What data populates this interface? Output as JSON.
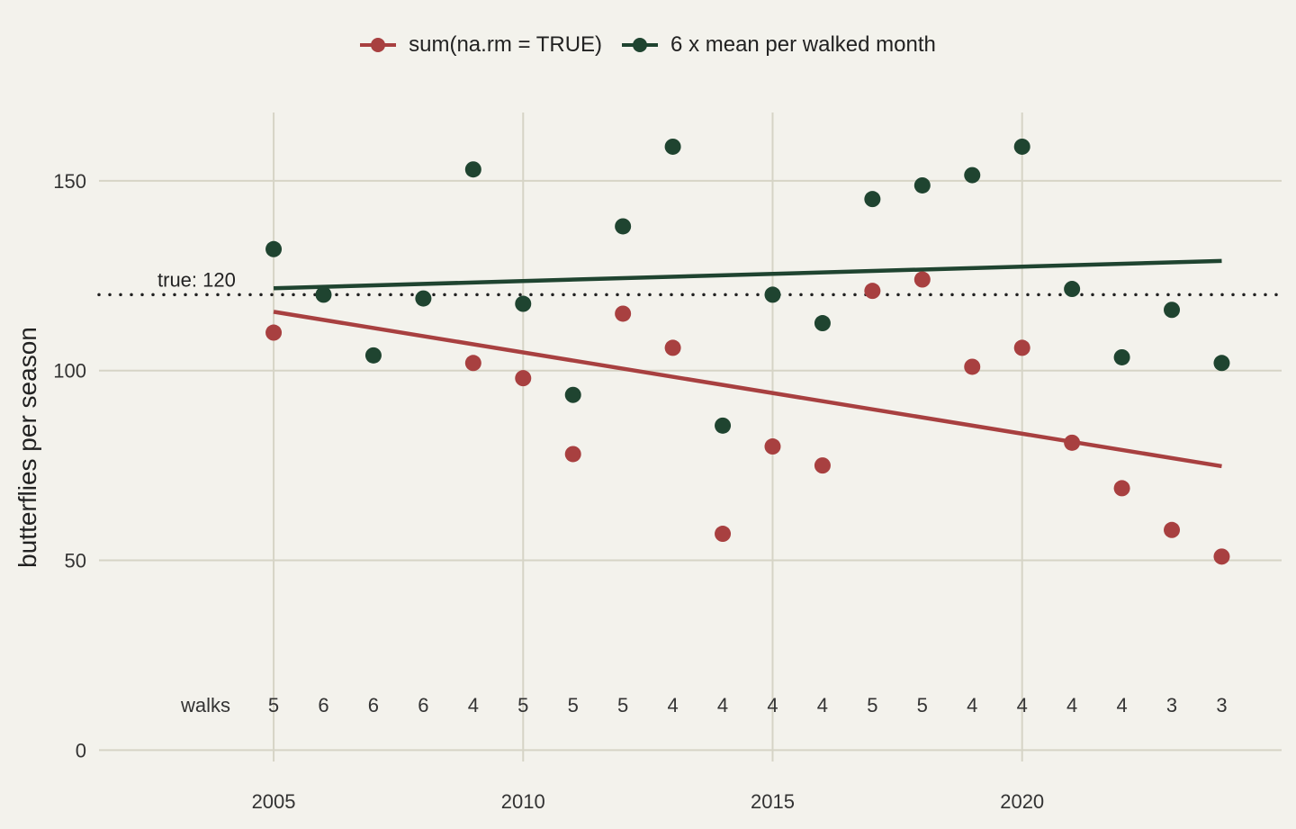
{
  "chart_data": {
    "type": "scatter",
    "ylabel": "butterflies per season",
    "xlabel": "",
    "xlim": [
      2001.5,
      2025.2
    ],
    "ylim": [
      -3,
      168
    ],
    "x_ticks": [
      2005,
      2010,
      2015,
      2020
    ],
    "y_ticks": [
      0,
      50,
      100,
      150
    ],
    "grid": true,
    "legend_position": "top",
    "x": [
      2005,
      2006,
      2007,
      2008,
      2009,
      2010,
      2011,
      2012,
      2013,
      2014,
      2015,
      2016,
      2017,
      2018,
      2019,
      2020,
      2021,
      2022,
      2023,
      2024
    ],
    "series": [
      {
        "name": "sum(na.rm = TRUE)",
        "color": "#a84040",
        "values": [
          110,
          null,
          null,
          null,
          102,
          98,
          78,
          115,
          106,
          57,
          80,
          75,
          121,
          124,
          101,
          106,
          81,
          69,
          58,
          51
        ],
        "trend": {
          "x": [
            2005,
            2024
          ],
          "y": [
            115.5,
            74.8
          ]
        }
      },
      {
        "name": "6 x mean per walked month",
        "color": "#1f4430",
        "values": [
          132,
          120,
          104,
          119,
          153,
          117.6,
          93.6,
          138,
          159,
          85.5,
          120,
          112.5,
          145.2,
          148.8,
          151.5,
          159,
          121.5,
          103.5,
          116,
          102
        ],
        "trend": {
          "x": [
            2005,
            2024
          ],
          "y": [
            121.7,
            128.9
          ]
        }
      }
    ],
    "reference_line": {
      "y": 120,
      "label": "true: 120",
      "style": "dotted",
      "color": "#222222"
    },
    "walks_label": "walks",
    "walks_y": 12,
    "walks": [
      "5",
      "6",
      "6",
      "6",
      "4",
      "5",
      "5",
      "5",
      "4",
      "4",
      "4",
      "4",
      "5",
      "5",
      "4",
      "4",
      "4",
      "4",
      "3",
      "3"
    ]
  }
}
